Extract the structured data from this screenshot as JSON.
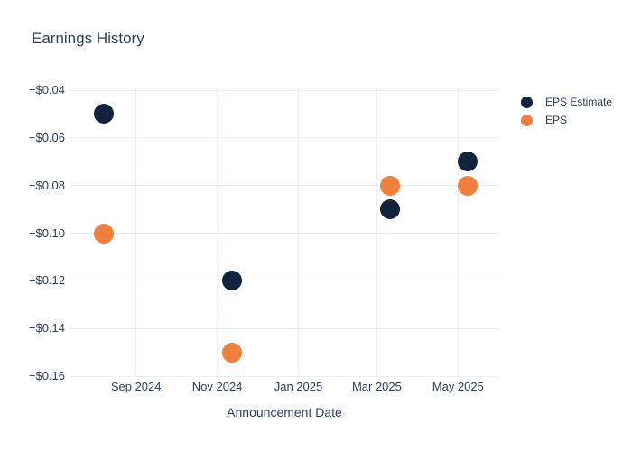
{
  "chart_data": {
    "type": "scatter",
    "title": "Earnings History",
    "xlabel": "Announcement Date",
    "ylabel": "",
    "grid": true,
    "legend_position": "top-right",
    "x_range": [
      "2024-07-13",
      "2025-06-01"
    ],
    "y_range": [
      -0.16,
      -0.04
    ],
    "x_ticks": [
      {
        "label": "Sep 2024",
        "date": "2024-09-01"
      },
      {
        "label": "Nov 2024",
        "date": "2024-11-01"
      },
      {
        "label": "Jan 2025",
        "date": "2025-01-01"
      },
      {
        "label": "Mar 2025",
        "date": "2025-03-01"
      },
      {
        "label": "May 2025",
        "date": "2025-05-01"
      }
    ],
    "y_ticks": [
      {
        "label": "−$0.04",
        "value": -0.04
      },
      {
        "label": "−$0.06",
        "value": -0.06
      },
      {
        "label": "−$0.08",
        "value": -0.08
      },
      {
        "label": "−$0.10",
        "value": -0.1
      },
      {
        "label": "−$0.12",
        "value": -0.12
      },
      {
        "label": "−$0.14",
        "value": -0.14
      },
      {
        "label": "−$0.16",
        "value": -0.16
      }
    ],
    "series": [
      {
        "name": "EPS Estimate",
        "color": "#12233f",
        "points": [
          {
            "date": "2024-08-08",
            "value": -0.05
          },
          {
            "date": "2024-11-12",
            "value": -0.12
          },
          {
            "date": "2025-03-11",
            "value": -0.09
          },
          {
            "date": "2025-05-08",
            "value": -0.07
          }
        ]
      },
      {
        "name": "EPS",
        "color": "#f07e3c",
        "points": [
          {
            "date": "2024-08-08",
            "value": -0.1
          },
          {
            "date": "2024-11-12",
            "value": -0.15
          },
          {
            "date": "2025-03-11",
            "value": -0.08
          },
          {
            "date": "2025-05-08",
            "value": -0.08
          }
        ]
      }
    ],
    "colors": {
      "text": "#2a3f5f",
      "grid": "#ebf0f8",
      "background": "#ffffff",
      "eps_estimate": "#12233f",
      "eps": "#f07e3c"
    }
  }
}
